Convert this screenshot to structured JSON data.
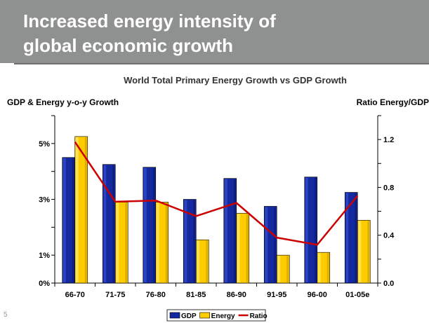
{
  "slide": {
    "title_line1": "Increased energy intensity of",
    "title_line2": "global economic growth",
    "page_number": "5"
  },
  "chart_data": {
    "type": "bar",
    "title": "World Total Primary Energy Growth vs GDP Growth",
    "ylabel_left": "GDP & Energy y-o-y Growth",
    "ylabel_right": "Ratio Energy/GDP",
    "categories": [
      "66-70",
      "71-75",
      "76-80",
      "81-85",
      "86-90",
      "91-95",
      "96-00",
      "01-05e"
    ],
    "series": [
      {
        "name": "GDP",
        "axis": "left",
        "type": "bar",
        "color": "#1428a0",
        "values": [
          4.5,
          4.25,
          4.15,
          3.0,
          3.75,
          2.75,
          3.8,
          3.25
        ]
      },
      {
        "name": "Energy",
        "axis": "left",
        "type": "bar",
        "color": "#ffcc00",
        "values": [
          5.25,
          2.9,
          2.9,
          1.55,
          2.5,
          1.0,
          1.1,
          2.25
        ]
      },
      {
        "name": "Ratio",
        "axis": "right",
        "type": "line",
        "color": "#cc0000",
        "values": [
          1.18,
          0.68,
          0.69,
          0.56,
          0.67,
          0.38,
          0.32,
          0.73
        ]
      }
    ],
    "y_left": {
      "min": 0,
      "max": 6,
      "tick_labels": [
        {
          "value": 0,
          "label": "0%"
        },
        {
          "value": 1,
          "label": "1%"
        },
        {
          "value": 3,
          "label": "3%"
        },
        {
          "value": 5,
          "label": "5%"
        }
      ]
    },
    "y_right": {
      "min": 0,
      "max": 1.4,
      "tick_labels": [
        {
          "value": 0,
          "label": "0.0"
        },
        {
          "value": 0.4,
          "label": "0.4"
        },
        {
          "value": 0.8,
          "label": "0.8"
        },
        {
          "value": 1.2,
          "label": "1.2"
        }
      ]
    },
    "grid": false,
    "legend_position": "bottom"
  },
  "colors": {
    "title_bar": "#8f9191",
    "gdp": "#1428a0",
    "energy": "#ffcc00",
    "ratio": "#cc0000"
  }
}
